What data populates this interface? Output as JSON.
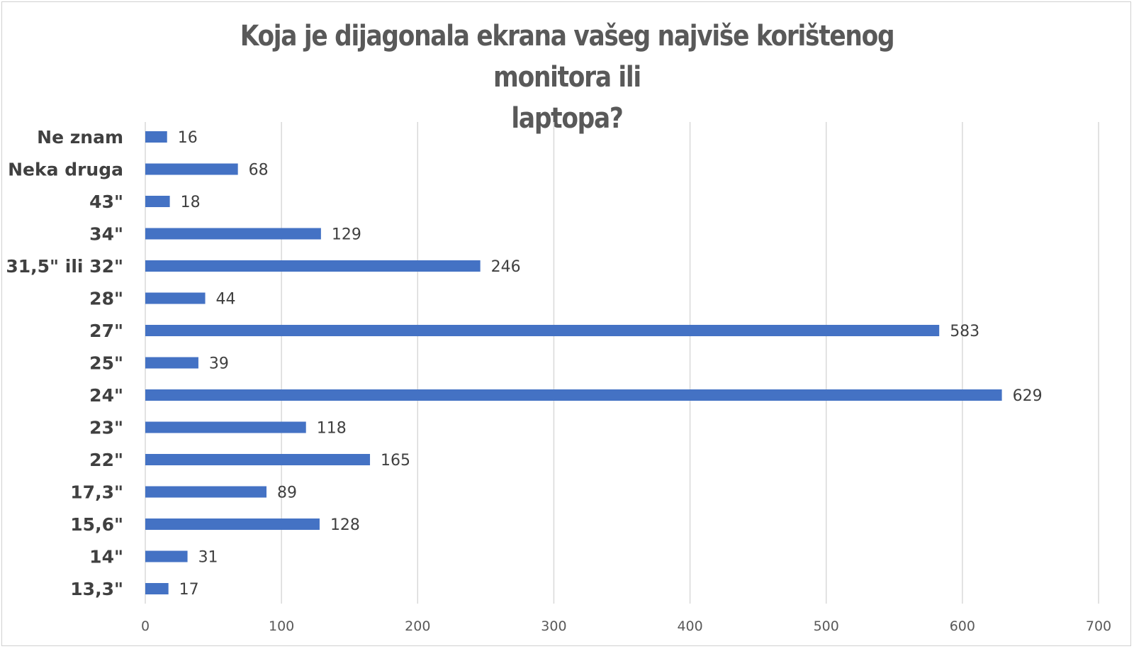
{
  "chart_data": {
    "type": "bar",
    "orientation": "horizontal",
    "title": "Koja je dijagonala ekrana vašeg najviše korištenog monitora ili laptopa?",
    "title_lines": [
      "Koja je dijagonala ekrana vašeg najviše korištenog monitora ili",
      "laptopa?"
    ],
    "categories": [
      "Ne znam",
      "Neka druga",
      "43\"",
      "34\"",
      "31,5\" ili 32\"",
      "28\"",
      "27\"",
      "25\"",
      "24\"",
      "23\"",
      "22\"",
      "17,3\"",
      "15,6\"",
      "14\"",
      "13,3\""
    ],
    "values": [
      16,
      68,
      18,
      129,
      246,
      44,
      583,
      39,
      629,
      118,
      165,
      89,
      128,
      31,
      17
    ],
    "xlim": [
      0,
      700
    ],
    "x_ticks": [
      0,
      100,
      200,
      300,
      400,
      500,
      600,
      700
    ],
    "grid": true,
    "bar_color": "#4472c4",
    "grid_color": "#d9d9d9"
  }
}
